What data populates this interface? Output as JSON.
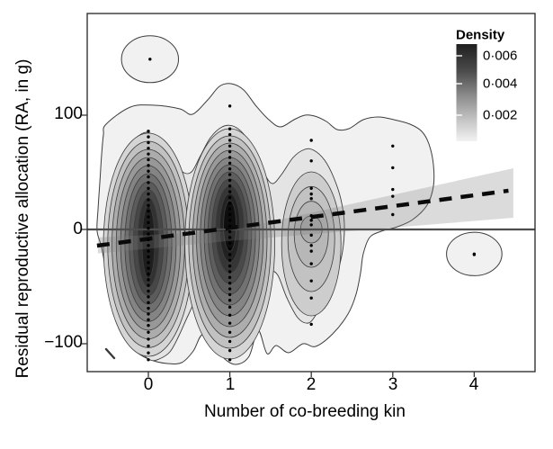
{
  "chart_data": {
    "type": "density-contour-scatter",
    "title": "",
    "xlabel": "Number of co-breeding kin",
    "ylabel": "Residual reproductive allocation (RA, in g)",
    "xlim": [
      -0.75,
      4.72
    ],
    "ylim": [
      -124,
      189
    ],
    "x_ticks": [
      0,
      1,
      2,
      3,
      4
    ],
    "x_tick_labels": [
      "0",
      "1",
      "2",
      "3",
      "4"
    ],
    "y_ticks": [
      100,
      0,
      -100
    ],
    "y_tick_labels": [
      "100",
      "0",
      "−100"
    ],
    "grid": false,
    "zero_line_y": 0,
    "legend": {
      "title": "Density",
      "position": "top-right",
      "tick_labels": [
        "0·006",
        "0·004",
        "0·002"
      ],
      "tick_values": [
        0.006,
        0.004,
        0.002
      ],
      "gradient_top": "#1f1f1f",
      "gradient_bottom": "#f2f2f2"
    },
    "regression_line": {
      "style": "dashed",
      "color": "#0a0a0a",
      "x1": -0.63,
      "y1": -14.2,
      "x2": 4.42,
      "y2": 33.9
    },
    "confidence_band": {
      "upper": [
        [
          -0.62,
          -7.0
        ],
        [
          1.0,
          -1.2
        ],
        [
          4.48,
          53.5
        ]
      ],
      "lower": [
        [
          -0.62,
          -21.0
        ],
        [
          1.0,
          -10.0
        ],
        [
          4.48,
          10.2
        ]
      ],
      "color": "rgba(125,125,125,0.28)"
    },
    "points": {
      "0": [
        86,
        81,
        76,
        71,
        66,
        61,
        56,
        51,
        46,
        41,
        36,
        31,
        26,
        21,
        16,
        11,
        6,
        1,
        -4,
        -9,
        -14,
        -19,
        -24,
        -29,
        -34,
        -39,
        -44,
        -49,
        -54,
        -59,
        -64,
        -69,
        -74,
        -79,
        -84,
        -90,
        -96,
        -102,
        -108,
        -114
      ],
      "1": [
        108,
        88,
        83,
        78,
        73,
        68,
        63,
        58,
        53,
        48,
        43,
        38,
        33,
        28,
        23,
        18,
        13,
        8,
        3,
        -2,
        -7,
        -12,
        -17,
        -22,
        -27,
        -32,
        -37,
        -42,
        -47,
        -52,
        -57,
        -62,
        -68,
        -75,
        -82,
        -90,
        -98,
        -106,
        -114
      ],
      "2": [
        78,
        60,
        36,
        31,
        27,
        12,
        8,
        4,
        -5,
        -14,
        -19,
        -30,
        -45,
        -60,
        -83
      ],
      "3": [
        73,
        54,
        35,
        29,
        13
      ],
      "4": [
        -22
      ]
    },
    "outliers": [
      {
        "kin": 0.02,
        "ra": 149,
        "ellipse_rx_kin": 0.35,
        "ellipse_ry_ra": 20.5
      },
      {
        "kin": 4.0,
        "ra": -21.5,
        "ellipse_rx_kin": 0.34,
        "ellipse_ry_ra": 19.0
      }
    ],
    "density_peaks": [
      {
        "kin": 0,
        "ra_center": -11,
        "n_levels": 10,
        "max_density": 0.006
      },
      {
        "kin": 1,
        "ra_center": -2,
        "n_levels": 11,
        "max_density": 0.0065
      },
      {
        "kin": 2,
        "ra_center": 0,
        "n_levels": 4,
        "max_density": 0.0035
      }
    ],
    "colors": {
      "contour_line": "#3d3d3d",
      "fill_lightest": "#f1f1f1",
      "fill_second": "#e4e4e4",
      "fill_darkest": "#0e0e0e",
      "zero_line": "#4d4d4d",
      "point": "#000000",
      "panel_border": "#333333"
    }
  }
}
